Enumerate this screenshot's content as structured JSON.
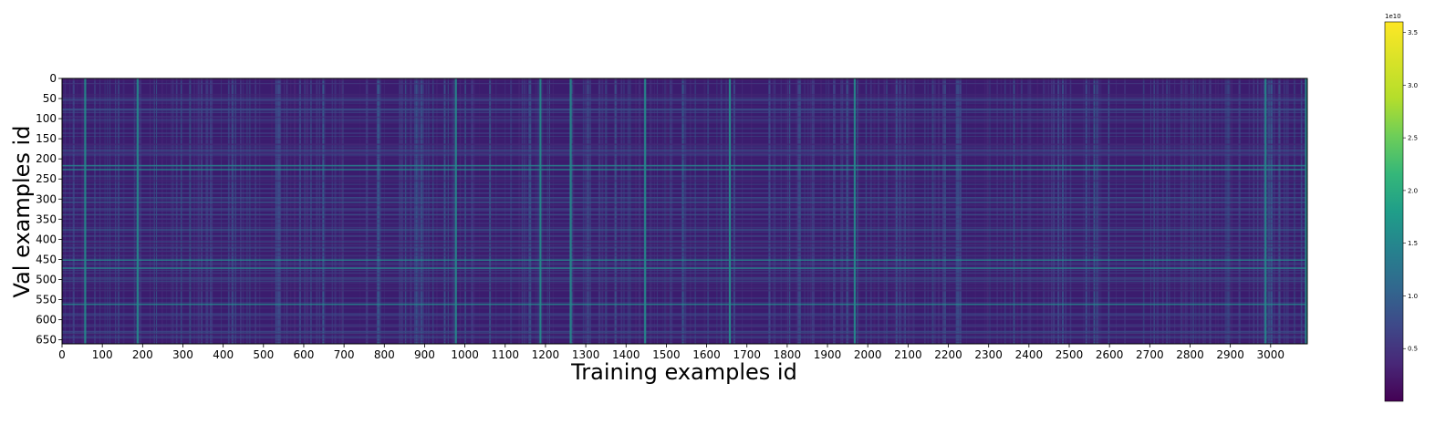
{
  "chart_data": {
    "type": "heatmap",
    "title": "",
    "xlabel": "Training examples id",
    "ylabel": "Val examples id",
    "xlim": [
      0,
      3091
    ],
    "ylim": [
      0,
      660
    ],
    "x_ticks": [
      0,
      100,
      200,
      300,
      400,
      500,
      600,
      700,
      800,
      900,
      1000,
      1100,
      1200,
      1300,
      1400,
      1500,
      1600,
      1700,
      1800,
      1900,
      2000,
      2100,
      2200,
      2300,
      2400,
      2500,
      2600,
      2700,
      2800,
      2900,
      3000
    ],
    "y_ticks": [
      0,
      50,
      100,
      150,
      200,
      250,
      300,
      350,
      400,
      450,
      500,
      550,
      600,
      650
    ],
    "colormap": "viridis",
    "colorbar": {
      "range": [
        0,
        36000000000.0
      ],
      "ticks": [
        0.5,
        1.0,
        1.5,
        2.0,
        2.5,
        3.0,
        3.5
      ],
      "tick_labels": [
        "0.5",
        "1.0",
        "1.5",
        "2.0",
        "2.5",
        "3.0",
        "3.5"
      ],
      "offset_text": "1e10"
    },
    "value_description": "Mostly low values (dark purple, ~0.1e10–0.5e10) with scattered brighter vertical and horizontal streaks up to ~2.0e10",
    "bright_columns": [
      55,
      185,
      975,
      1185,
      1260,
      1445,
      1655,
      1965,
      2985,
      3085
    ],
    "bright_rows": [
      215,
      225,
      450,
      470,
      560
    ]
  },
  "colors": {
    "axis": "#000000",
    "viridis_low": "#440154",
    "viridis_mid": "#21918c",
    "viridis_high": "#fde725"
  }
}
